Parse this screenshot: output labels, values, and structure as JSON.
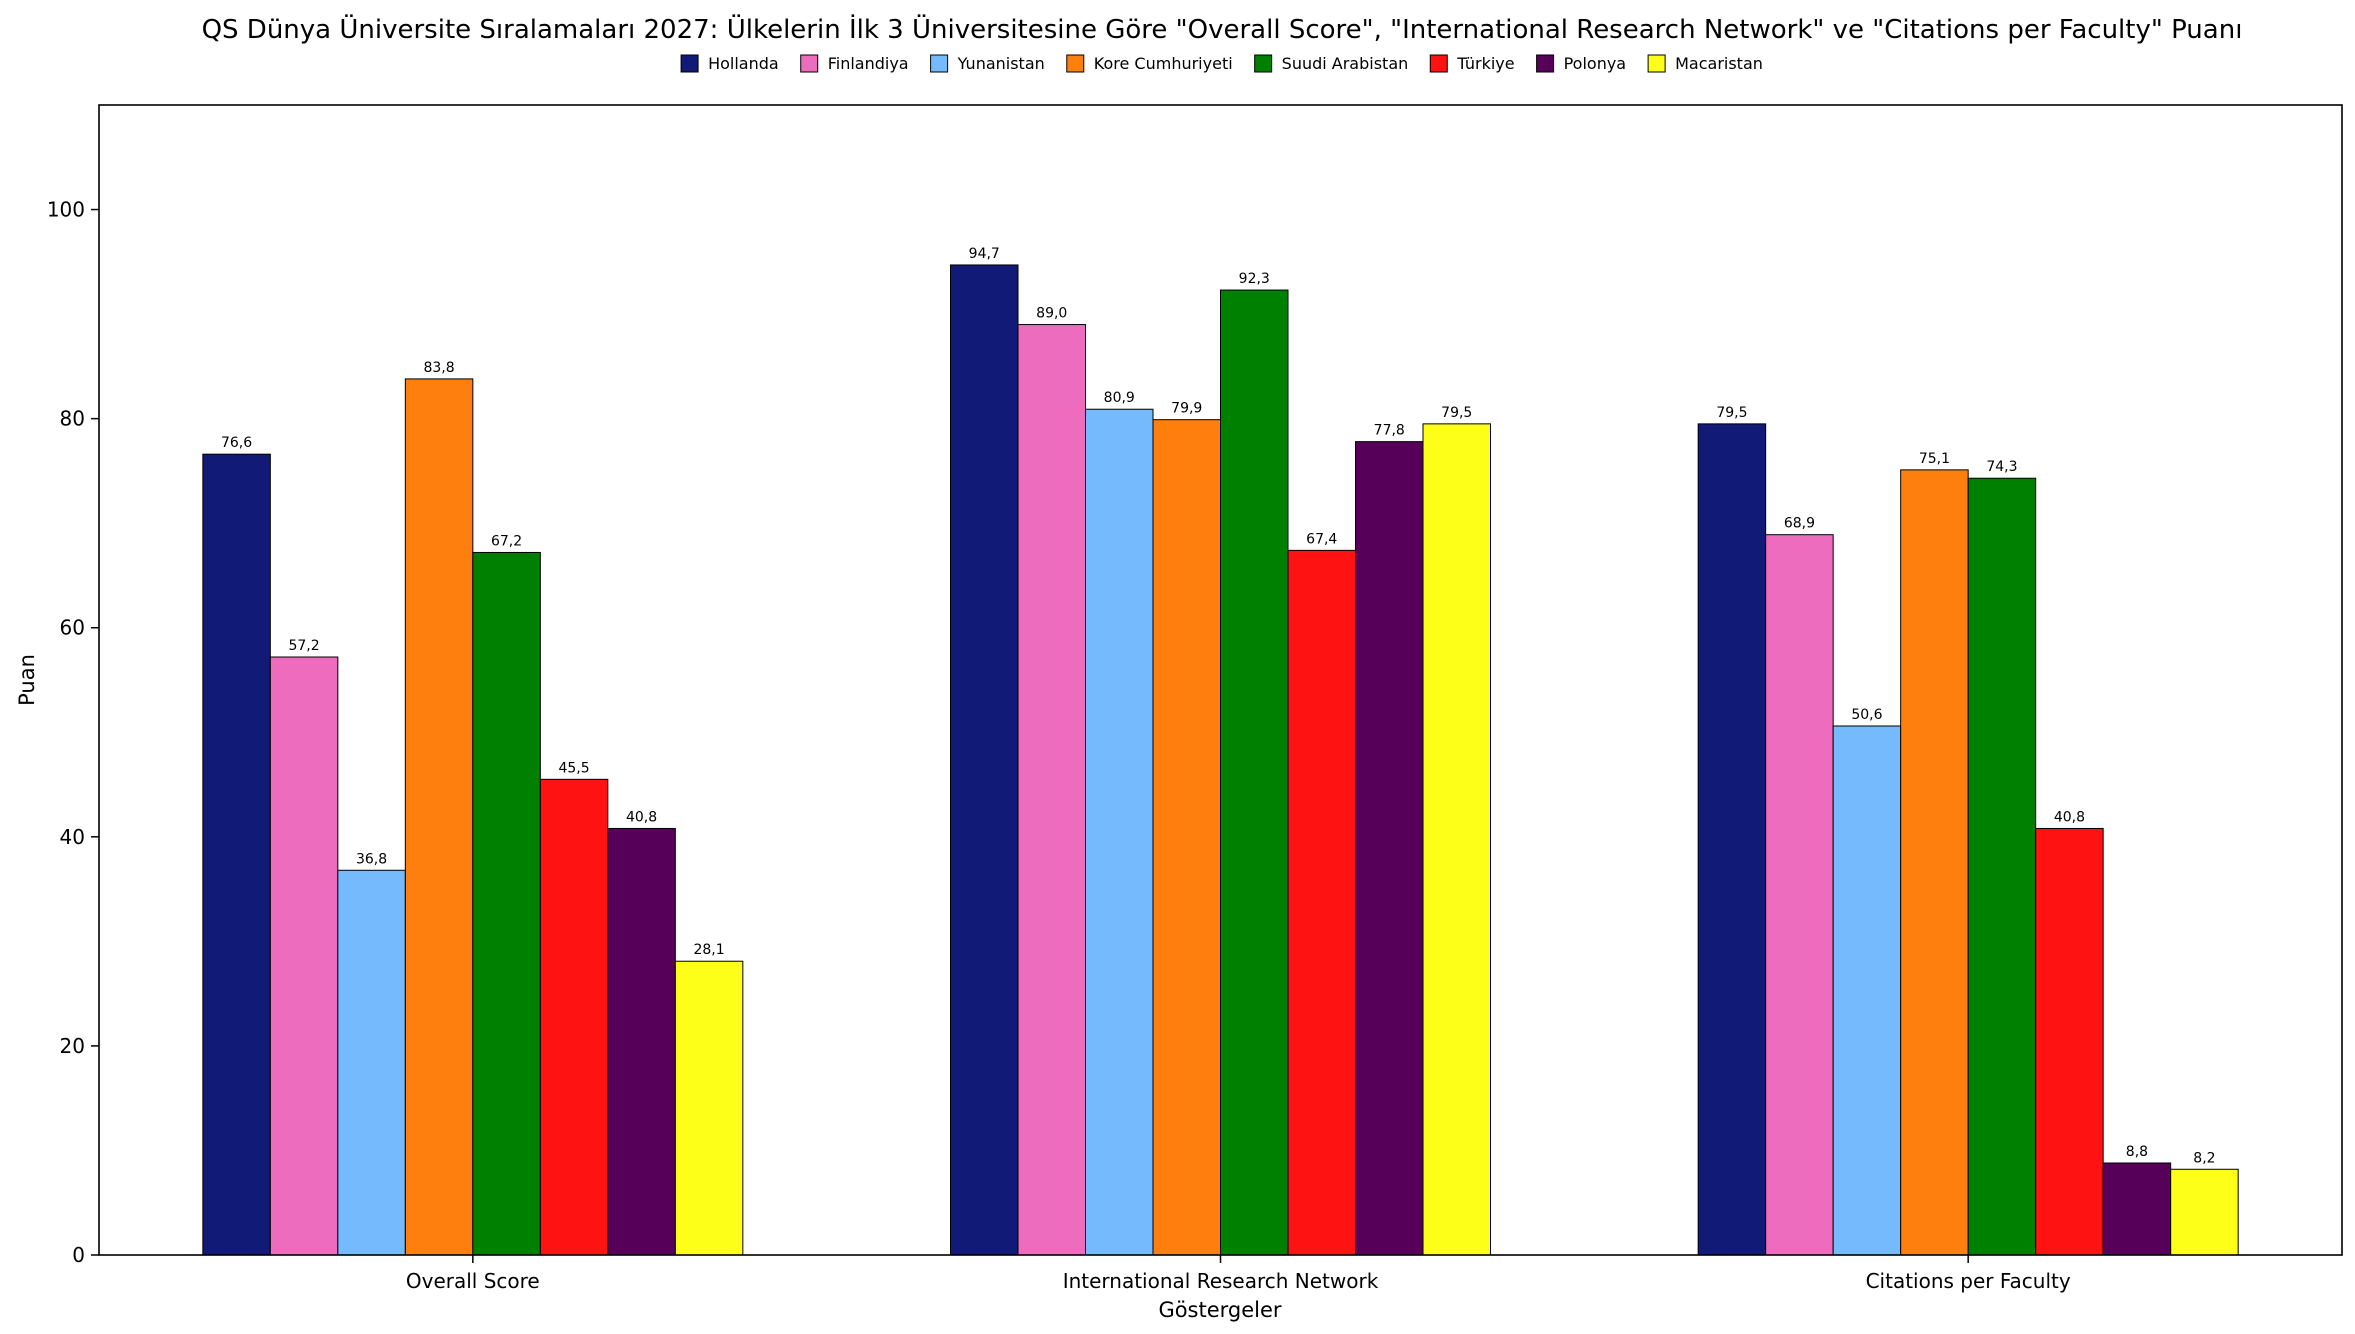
{
  "chart_data": {
    "type": "bar",
    "title": "QS Dünya Üniversite Sıralamaları 2027: Ülkelerin İlk 3 Üniversitesine Göre \"Overall Score\", \"International Research Network\" ve \"Citations per Faculty\" Puanı",
    "xlabel": "Göstergeler",
    "ylabel": "Puan",
    "categories": [
      "Overall Score",
      "International Research Network",
      "Citations per Faculty"
    ],
    "ylim": [
      0,
      110
    ],
    "yticks": [
      0,
      20,
      40,
      60,
      80,
      100
    ],
    "grid": false,
    "legend_position": "top-center",
    "series": [
      {
        "name": "Hollanda",
        "color": "#121a78",
        "values": [
          76.6,
          94.7,
          79.5
        ],
        "labels": [
          "76,6",
          "94,7",
          "79,5"
        ]
      },
      {
        "name": "Finlandiya",
        "color": "#ee6cbd",
        "values": [
          57.2,
          89.0,
          68.9
        ],
        "labels": [
          "57,2",
          "89,0",
          "68,9"
        ]
      },
      {
        "name": "Yunanistan",
        "color": "#76bafe",
        "values": [
          36.8,
          80.9,
          50.6
        ],
        "labels": [
          "36,8",
          "80,9",
          "50,6"
        ]
      },
      {
        "name": "Kore Cumhuriyeti",
        "color": "#fe7f0e",
        "values": [
          83.8,
          79.9,
          75.1
        ],
        "labels": [
          "83,8",
          "79,9",
          "75,1"
        ]
      },
      {
        "name": "Suudi Arabistan",
        "color": "#008000",
        "values": [
          67.2,
          92.3,
          74.3
        ],
        "labels": [
          "67,2",
          "92,3",
          "74,3"
        ]
      },
      {
        "name": "Türkiye",
        "color": "#fe1212",
        "values": [
          45.5,
          67.4,
          40.8
        ],
        "labels": [
          "45,5",
          "67,4",
          "40,8"
        ]
      },
      {
        "name": "Polonya",
        "color": "#560059",
        "values": [
          40.8,
          77.8,
          8.8
        ],
        "labels": [
          "40,8",
          "77,8",
          "8,8"
        ]
      },
      {
        "name": "Macaristan",
        "color": "#feff19",
        "values": [
          28.1,
          79.5,
          8.2
        ],
        "labels": [
          "28,1",
          "79,5",
          "8,2"
        ]
      }
    ]
  }
}
